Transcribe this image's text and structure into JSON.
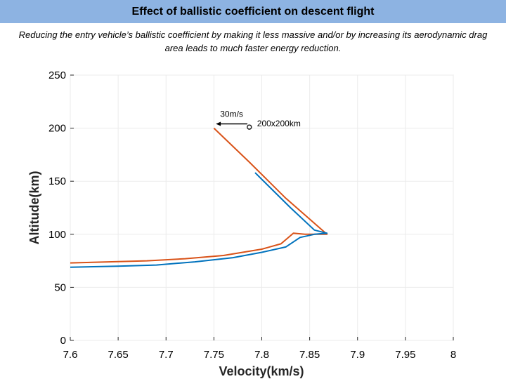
{
  "header": {
    "title": "Effect of ballistic coefficient on descent flight"
  },
  "description": "Reducing the entry vehicle’s ballistic coefficient by making it less massive and/or by increasing its aerodynamic drag area leads to much faster energy reduction.",
  "chart_data": {
    "type": "line",
    "title": "",
    "xlabel": "Velocity(km/s)",
    "ylabel": "Altitude(km)",
    "xlim": [
      7.6,
      8.0
    ],
    "ylim": [
      0,
      250
    ],
    "xticks": [
      "7.6",
      "7.65",
      "7.7",
      "7.75",
      "7.8",
      "7.85",
      "7.9",
      "7.95",
      "8"
    ],
    "yticks": [
      "0",
      "50",
      "100",
      "150",
      "200",
      "250"
    ],
    "grid": true,
    "colors": {
      "orange": "#d95319",
      "blue": "#0072bd"
    },
    "series": [
      {
        "color": "#d95319",
        "x": [
          7.75,
          7.787,
          7.825,
          7.868,
          7.862,
          7.845,
          7.833,
          7.82,
          7.8,
          7.76,
          7.72,
          7.68,
          7.64,
          7.6
        ],
        "y": [
          200,
          168,
          134,
          100,
          100,
          100,
          101,
          91,
          86,
          80,
          77,
          75,
          74,
          73
        ]
      },
      {
        "color": "#0072bd",
        "x": [
          7.793,
          7.83,
          7.855,
          7.868,
          7.855,
          7.84,
          7.825,
          7.8,
          7.77,
          7.73,
          7.69,
          7.65,
          7.6
        ],
        "y": [
          158,
          125,
          104,
          101,
          100,
          97,
          88,
          83,
          78,
          74,
          71,
          70,
          69
        ]
      }
    ],
    "annotations": {
      "arrow_label": "30m/s",
      "arrow": {
        "x_from": 7.785,
        "x_to": 7.752,
        "y": 204
      },
      "marker_label": "200x200km",
      "marker": {
        "x": 7.787,
        "y": 201
      }
    }
  }
}
